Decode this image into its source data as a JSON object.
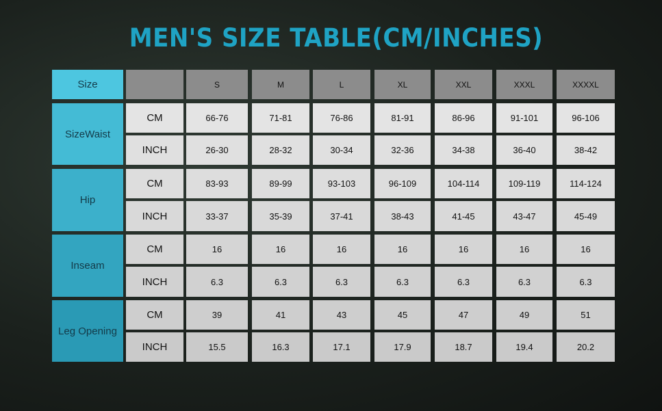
{
  "title": "MEN'S SIZE TABLE(CM/INCHES)",
  "colors": {
    "title": "#1fa3c4",
    "label_top": "#4dc6e0",
    "label_bottom": "#2a9ab5",
    "header": "#8c8c8c",
    "cell": "#dcdcdc"
  },
  "header": {
    "label": "Size",
    "unit": "",
    "sizes": [
      "S",
      "M",
      "L",
      "XL",
      "XXL",
      "XXXL",
      "XXXXL"
    ]
  },
  "groups": [
    {
      "label": "SizeWaist",
      "rows": [
        {
          "unit": "CM",
          "values": [
            "66-76",
            "71-81",
            "76-86",
            "81-91",
            "86-96",
            "91-101",
            "96-106"
          ]
        },
        {
          "unit": "INCH",
          "values": [
            "26-30",
            "28-32",
            "30-34",
            "32-36",
            "34-38",
            "36-40",
            "38-42"
          ]
        }
      ]
    },
    {
      "label": "Hip",
      "rows": [
        {
          "unit": "CM",
          "values": [
            "83-93",
            "89-99",
            "93-103",
            "96-109",
            "104-114",
            "109-119",
            "114-124"
          ]
        },
        {
          "unit": "INCH",
          "values": [
            "33-37",
            "35-39",
            "37-41",
            "38-43",
            "41-45",
            "43-47",
            "45-49"
          ]
        }
      ]
    },
    {
      "label": "Inseam",
      "rows": [
        {
          "unit": "CM",
          "values": [
            "16",
            "16",
            "16",
            "16",
            "16",
            "16",
            "16"
          ]
        },
        {
          "unit": "INCH",
          "values": [
            "6.3",
            "6.3",
            "6.3",
            "6.3",
            "6.3",
            "6.3",
            "6.3"
          ]
        }
      ]
    },
    {
      "label": "Leg Opening",
      "rows": [
        {
          "unit": "CM",
          "values": [
            "39",
            "41",
            "43",
            "45",
            "47",
            "49",
            "51"
          ]
        },
        {
          "unit": "INCH",
          "values": [
            "15.5",
            "16.3",
            "17.1",
            "17.9",
            "18.7",
            "19.4",
            "20.2"
          ]
        }
      ]
    }
  ]
}
